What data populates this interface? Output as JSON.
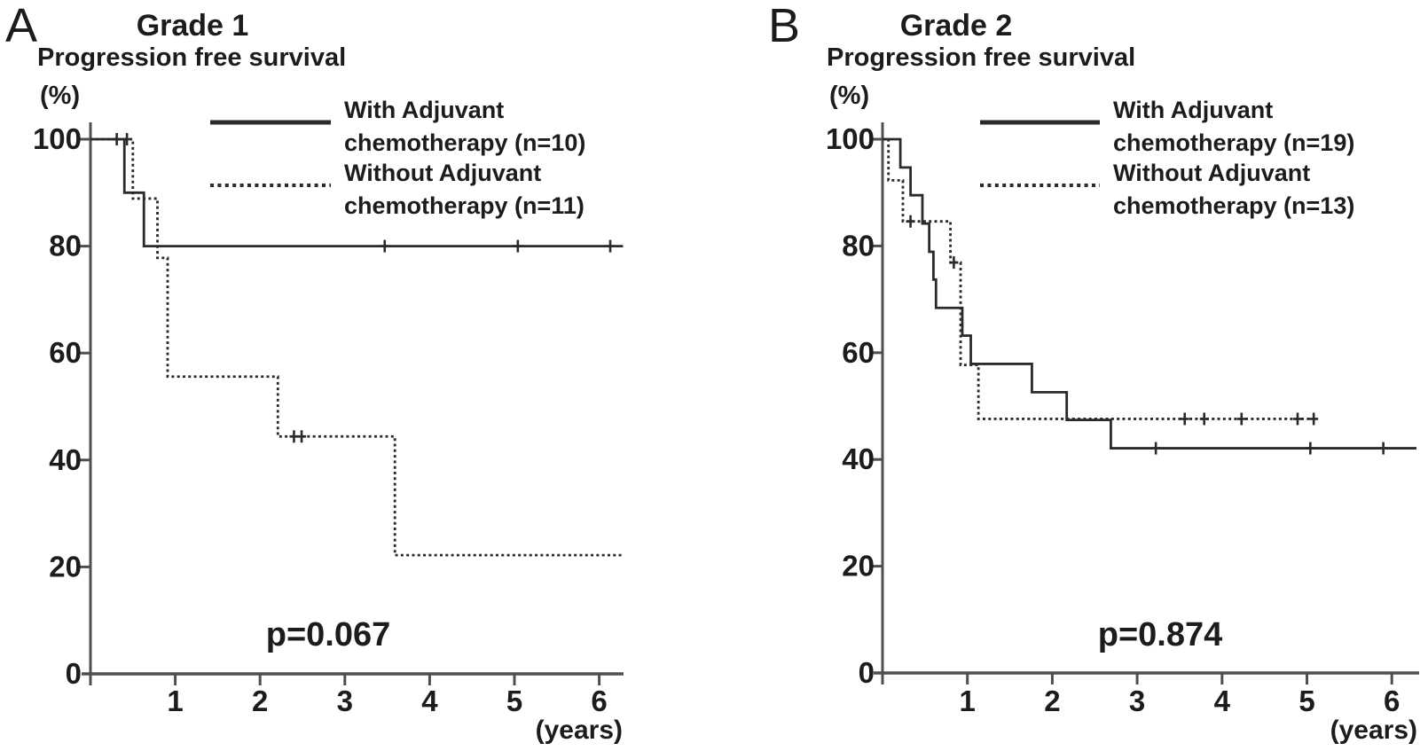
{
  "figure": {
    "background": "#ffffff",
    "ink_color": "#1c1c1c",
    "axis_color": "#4f4f4f",
    "curve_color": "#2a2a2a",
    "panels": [
      {
        "letter": "A",
        "title": "Grade 1",
        "subtitle": "Progression free  survival",
        "y_unit_label": "(%)",
        "x_unit_label": "(years)",
        "p_value_label": "p=0.067",
        "legend": [
          {
            "style": "solid",
            "line1": "With Adjuvant",
            "line2": "chemotherapy (n=10)"
          },
          {
            "style": "dotted",
            "line1": "Without Adjuvant",
            "line2": "chemotherapy (n=11)"
          }
        ]
      },
      {
        "letter": "B",
        "title": "Grade 2",
        "subtitle": "Progression free  survival",
        "y_unit_label": "(%)",
        "x_unit_label": "(years)",
        "p_value_label": "p=0.874",
        "legend": [
          {
            "style": "solid",
            "line1": "With Adjuvant",
            "line2": "chemotherapy (n=19)"
          },
          {
            "style": "dotted",
            "line1": "Without Adjuvant",
            "line2": "chemotherapy (n=13)"
          }
        ]
      }
    ]
  },
  "chart_data": [
    {
      "type": "line",
      "subtype": "kaplan-meier-step",
      "title": "Grade 1",
      "subtitle": "Progression free survival",
      "xlabel": "(years)",
      "ylabel": "(%)",
      "xlim": [
        0,
        6.3
      ],
      "ylim": [
        0,
        100
      ],
      "xticks": [
        1,
        2,
        3,
        4,
        5,
        6
      ],
      "yticks": [
        0,
        20,
        40,
        60,
        80,
        100
      ],
      "grid": false,
      "legend_position": "upper right",
      "p_value": "p=0.067",
      "series": [
        {
          "name": "With Adjuvant chemotherapy (n=10)",
          "style": "solid",
          "steps": [
            [
              0,
              100
            ],
            [
              0.4,
              90
            ],
            [
              0.63,
              80
            ],
            [
              6.28,
              80
            ]
          ],
          "censors": [
            [
              0.31,
              100
            ],
            [
              3.47,
              80
            ],
            [
              5.04,
              80
            ],
            [
              6.13,
              80
            ]
          ]
        },
        {
          "name": "Without Adjuvant chemotherapy (n=11)",
          "style": "dotted",
          "steps": [
            [
              0,
              100
            ],
            [
              0.5,
              88.9
            ],
            [
              0.79,
              77.8
            ],
            [
              0.91,
              55.6
            ],
            [
              2.21,
              44.4
            ],
            [
              3.59,
              22.2
            ],
            [
              6.28,
              22.2
            ]
          ],
          "censors": [
            [
              0.43,
              100
            ],
            [
              2.4,
              44.4
            ],
            [
              2.49,
              44.4
            ]
          ]
        }
      ]
    },
    {
      "type": "line",
      "subtype": "kaplan-meier-step",
      "title": "Grade 2",
      "subtitle": "Progression free survival",
      "xlabel": "(years)",
      "ylabel": "(%)",
      "xlim": [
        0,
        6.3
      ],
      "ylim": [
        0,
        100
      ],
      "xticks": [
        1,
        2,
        3,
        4,
        5,
        6
      ],
      "yticks": [
        0,
        20,
        40,
        60,
        80,
        100
      ],
      "grid": false,
      "legend_position": "upper right",
      "p_value": "p=0.874",
      "series": [
        {
          "name": "With Adjuvant chemotherapy (n=19)",
          "style": "solid",
          "steps": [
            [
              0,
              100
            ],
            [
              0.21,
              94.7
            ],
            [
              0.33,
              89.5
            ],
            [
              0.47,
              84.2
            ],
            [
              0.55,
              78.9
            ],
            [
              0.6,
              73.7
            ],
            [
              0.63,
              68.4
            ],
            [
              0.94,
              63.2
            ],
            [
              1.04,
              57.9
            ],
            [
              1.76,
              52.6
            ],
            [
              2.17,
              47.4
            ],
            [
              2.69,
              42.1
            ],
            [
              6.29,
              42.1
            ]
          ],
          "censors": [
            [
              3.22,
              42.1
            ],
            [
              5.04,
              42.1
            ],
            [
              5.9,
              42.1
            ]
          ]
        },
        {
          "name": "Without Adjuvant chemotherapy (n=13)",
          "style": "dotted",
          "steps": [
            [
              0,
              100
            ],
            [
              0.07,
              92.3
            ],
            [
              0.24,
              84.6
            ],
            [
              0.8,
              76.9
            ],
            [
              0.92,
              57.7
            ],
            [
              1.13,
              47.6
            ],
            [
              5.1,
              47.6
            ]
          ],
          "censors": [
            [
              0.33,
              84.6
            ],
            [
              0.84,
              76.9
            ],
            [
              3.56,
              47.6
            ],
            [
              3.79,
              47.6
            ],
            [
              4.23,
              47.6
            ],
            [
              4.89,
              47.6
            ],
            [
              5.08,
              47.6
            ]
          ]
        }
      ]
    }
  ]
}
